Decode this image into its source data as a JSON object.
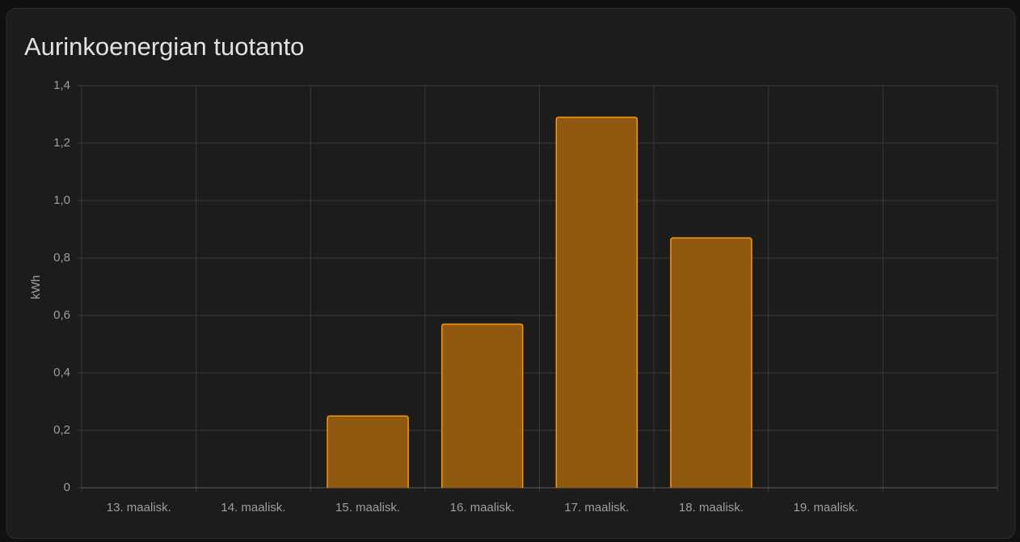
{
  "chart_data": {
    "type": "bar",
    "title": "Aurinkoenergian tuotanto",
    "y_label": "kWh",
    "categories": [
      "13. maalisk.",
      "14. maalisk.",
      "15. maalisk.",
      "16. maalisk.",
      "17. maalisk.",
      "18. maalisk.",
      "19. maalisk.",
      null
    ],
    "values": [
      null,
      null,
      0.25,
      0.57,
      1.29,
      0.87,
      null,
      null
    ],
    "color": "#ff9800",
    "fill": "#8f5a10",
    "ylim": [
      0,
      1.4
    ],
    "yticks": [
      0,
      {
        "value": 0.2,
        "label": "0,2"
      },
      {
        "value": 0.4,
        "label": "0,4"
      },
      {
        "value": 0.6,
        "label": "0,6"
      },
      {
        "value": 0.8,
        "label": "0,8"
      },
      {
        "value": 1.0,
        "label": "1,0"
      },
      {
        "value": 1.2,
        "label": "1,2"
      },
      {
        "value": 1.4,
        "label": "1,4"
      }
    ],
    "grid": true
  }
}
